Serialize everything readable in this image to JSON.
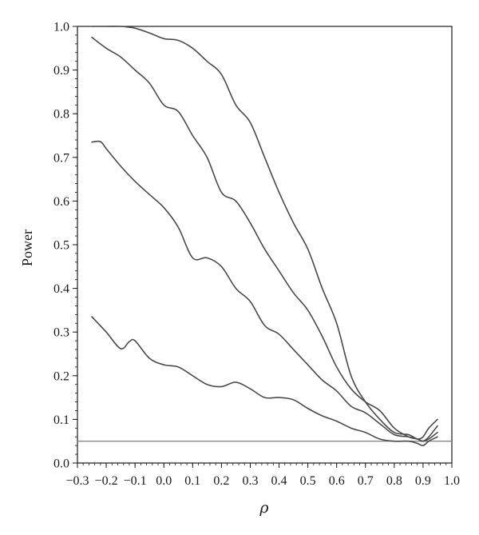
{
  "chart_data": {
    "type": "line",
    "title": "",
    "xlabel": "ρ",
    "ylabel": "Power",
    "xlim": [
      -0.3,
      1.0
    ],
    "ylim": [
      0.0,
      1.0
    ],
    "x_ticks": [
      "−0.3",
      "−0.2",
      "−0.1",
      "0.0",
      "0.1",
      "0.2",
      "0.3",
      "0.4",
      "0.5",
      "0.6",
      "0.7",
      "0.8",
      "0.9",
      "1.0"
    ],
    "y_ticks": [
      "0.0",
      "0.1",
      "0.2",
      "0.3",
      "0.4",
      "0.5",
      "0.6",
      "0.7",
      "0.8",
      "0.9",
      "1.0"
    ],
    "grid": false,
    "legend": "none",
    "reference_line": {
      "y": 0.05,
      "color": "#8a8a8a"
    },
    "line_color": "#4a4a4a",
    "series": [
      {
        "x": [
          -0.25,
          -0.2,
          -0.15,
          -0.12,
          -0.1,
          -0.05,
          0.0,
          0.05,
          0.1,
          0.15,
          0.2,
          0.25,
          0.3,
          0.35,
          0.4,
          0.45,
          0.5,
          0.55,
          0.6,
          0.65,
          0.7,
          0.75,
          0.8,
          0.85,
          0.88,
          0.9,
          0.92,
          0.95
        ],
        "y": [
          1.0,
          1.0,
          1.0,
          0.998,
          0.996,
          0.985,
          0.972,
          0.968,
          0.95,
          0.92,
          0.89,
          0.82,
          0.78,
          0.7,
          0.62,
          0.55,
          0.49,
          0.4,
          0.32,
          0.2,
          0.14,
          0.1,
          0.07,
          0.065,
          0.055,
          0.06,
          0.08,
          0.1
        ]
      },
      {
        "x": [
          -0.25,
          -0.2,
          -0.15,
          -0.1,
          -0.05,
          0.0,
          0.05,
          0.1,
          0.15,
          0.2,
          0.25,
          0.3,
          0.35,
          0.4,
          0.45,
          0.5,
          0.55,
          0.6,
          0.65,
          0.7,
          0.75,
          0.8,
          0.85,
          0.88,
          0.9,
          0.92,
          0.95
        ],
        "y": [
          0.975,
          0.95,
          0.93,
          0.9,
          0.87,
          0.82,
          0.805,
          0.75,
          0.7,
          0.62,
          0.6,
          0.55,
          0.49,
          0.44,
          0.39,
          0.35,
          0.29,
          0.22,
          0.17,
          0.14,
          0.12,
          0.08,
          0.06,
          0.055,
          0.05,
          0.06,
          0.085
        ]
      },
      {
        "x": [
          -0.25,
          -0.22,
          -0.2,
          -0.15,
          -0.1,
          -0.05,
          0.0,
          0.05,
          0.1,
          0.15,
          0.2,
          0.25,
          0.3,
          0.35,
          0.4,
          0.45,
          0.5,
          0.55,
          0.6,
          0.65,
          0.7,
          0.75,
          0.8,
          0.85,
          0.88,
          0.9,
          0.92,
          0.95
        ],
        "y": [
          0.735,
          0.736,
          0.72,
          0.68,
          0.645,
          0.615,
          0.585,
          0.54,
          0.47,
          0.47,
          0.45,
          0.4,
          0.37,
          0.315,
          0.295,
          0.26,
          0.225,
          0.19,
          0.165,
          0.13,
          0.115,
          0.09,
          0.065,
          0.06,
          0.055,
          0.05,
          0.055,
          0.07
        ]
      },
      {
        "x": [
          -0.25,
          -0.2,
          -0.15,
          -0.12,
          -0.1,
          -0.05,
          0.0,
          0.05,
          0.1,
          0.15,
          0.2,
          0.25,
          0.3,
          0.35,
          0.4,
          0.45,
          0.5,
          0.55,
          0.6,
          0.65,
          0.7,
          0.75,
          0.8,
          0.85,
          0.88,
          0.9,
          0.92,
          0.95
        ],
        "y": [
          0.335,
          0.3,
          0.262,
          0.278,
          0.28,
          0.24,
          0.225,
          0.22,
          0.2,
          0.18,
          0.175,
          0.185,
          0.17,
          0.15,
          0.15,
          0.145,
          0.125,
          0.108,
          0.096,
          0.08,
          0.07,
          0.055,
          0.05,
          0.05,
          0.045,
          0.04,
          0.05,
          0.06
        ]
      }
    ]
  }
}
